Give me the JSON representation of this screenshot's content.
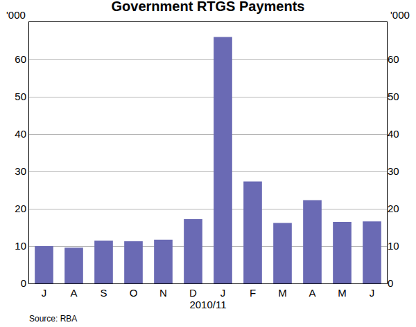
{
  "chart_data": {
    "type": "bar",
    "title": "Government RTGS Payments",
    "categories": [
      "J",
      "A",
      "S",
      "O",
      "N",
      "D",
      "J",
      "F",
      "M",
      "A",
      "M",
      "J"
    ],
    "values": [
      10,
      9.6,
      11.5,
      11.3,
      11.7,
      17.2,
      66,
      27.3,
      16.2,
      22.3,
      16.5,
      16.6
    ],
    "color": "#6a6ab4",
    "x_label": "2010/11",
    "y_label": "'000",
    "y2_label": "'000",
    "source": "Source: RBA",
    "ylim": [
      0,
      70
    ],
    "yticks": [
      0,
      10,
      20,
      30,
      40,
      50,
      60
    ],
    "y2lim": [
      0,
      70
    ],
    "y2ticks": [
      0,
      10,
      20,
      30,
      40,
      50,
      60
    ],
    "grid": true
  }
}
